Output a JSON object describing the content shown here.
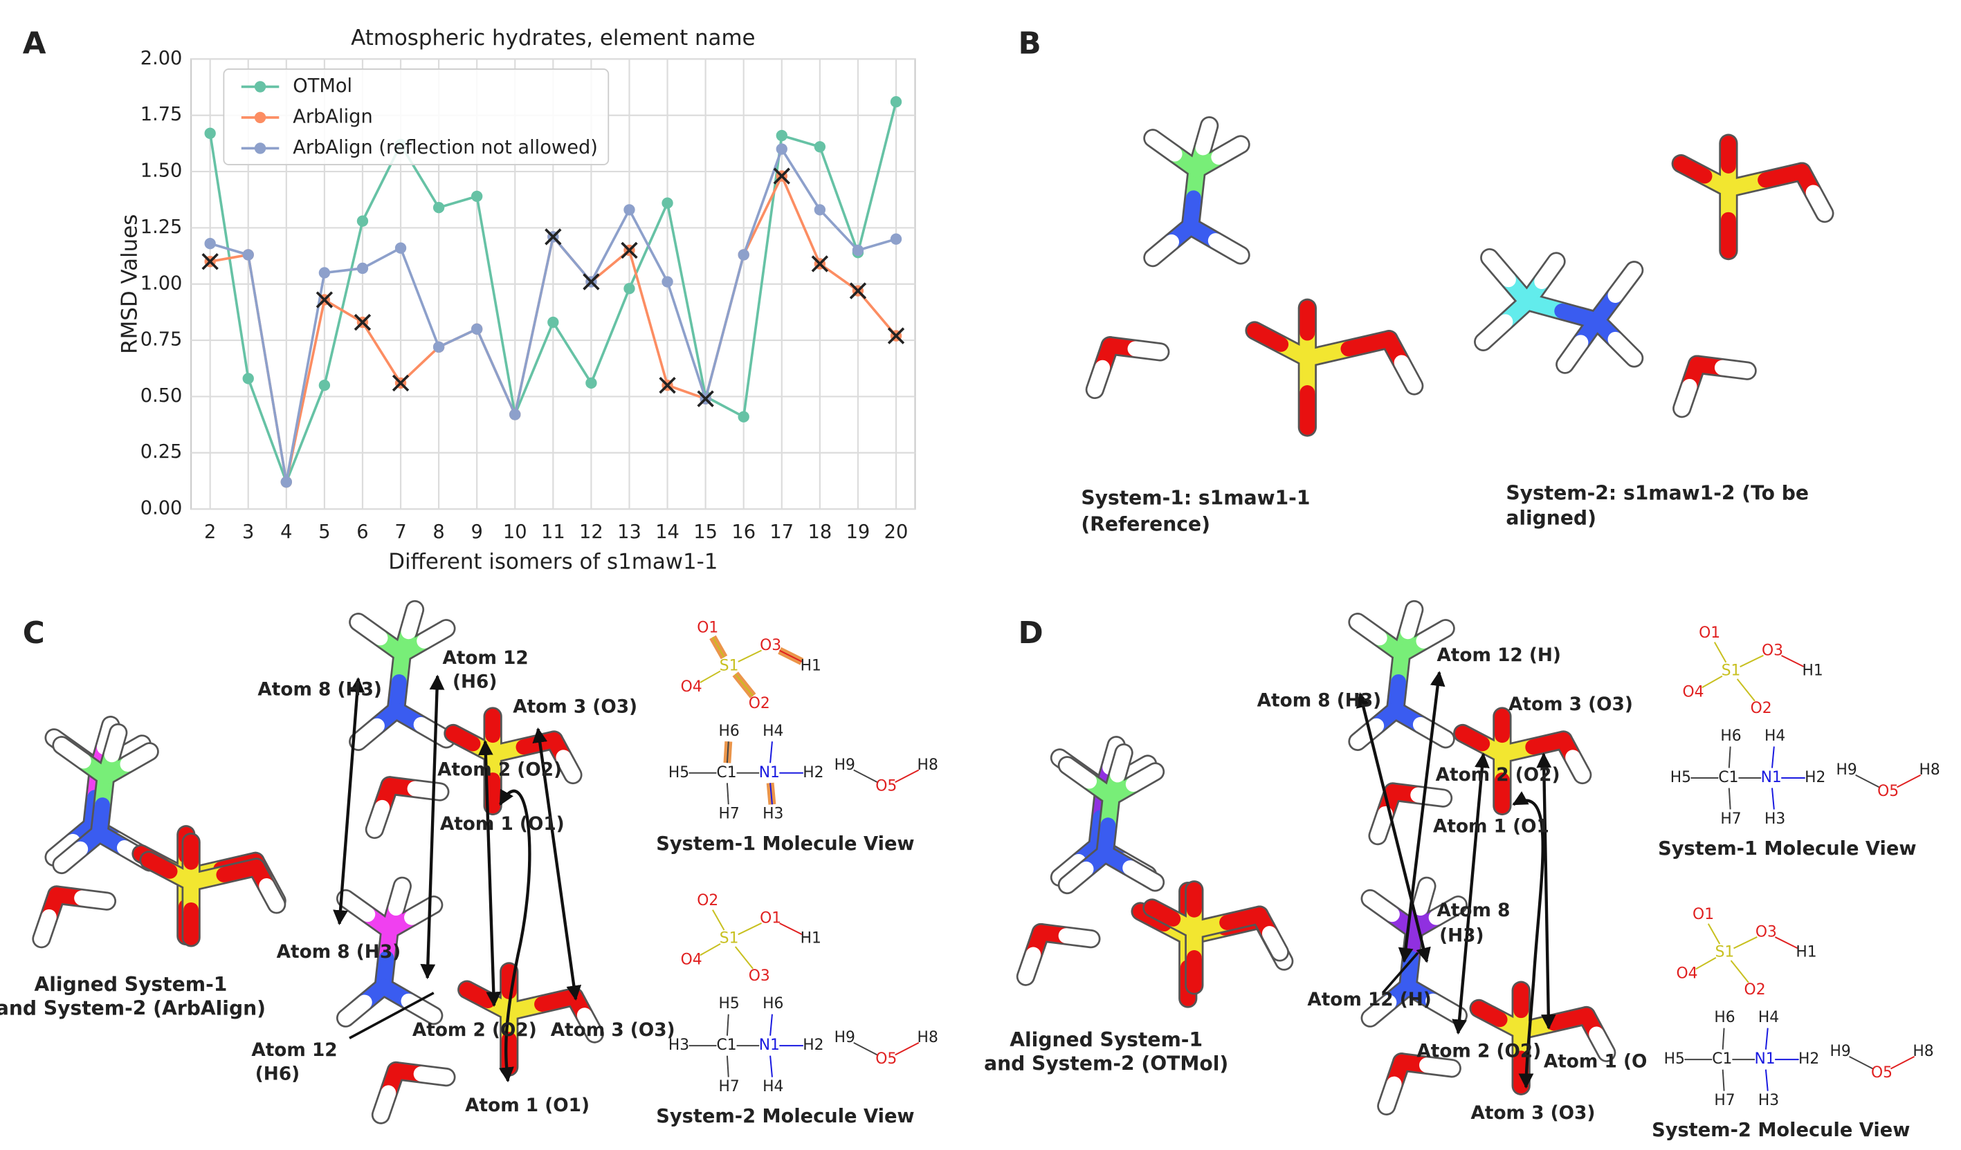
{
  "chart_data": {
    "type": "line",
    "title": "Atmospheric hydrates, element name",
    "x_label": "Different isomers of s1maw1-1",
    "y_label": "RMSD Values",
    "x": [
      2,
      3,
      4,
      5,
      6,
      7,
      8,
      9,
      10,
      11,
      12,
      13,
      14,
      15,
      16,
      17,
      18,
      19,
      20
    ],
    "series": [
      {
        "name": "OTMol",
        "color": "#66c2a5",
        "values": [
          1.67,
          0.58,
          0.12,
          0.55,
          1.28,
          1.62,
          1.34,
          1.39,
          0.42,
          0.83,
          0.56,
          0.98,
          1.36,
          0.5,
          0.41,
          1.66,
          1.61,
          1.14,
          1.81
        ]
      },
      {
        "name": "ArbAlign",
        "color": "#fc8d62",
        "values": [
          1.1,
          1.13,
          0.12,
          0.93,
          0.83,
          0.56,
          0.72,
          0.8,
          0.42,
          1.21,
          1.01,
          1.15,
          0.55,
          0.49,
          1.13,
          1.48,
          1.09,
          0.97,
          0.77
        ]
      },
      {
        "name": "ArbAlign (reflection not allowed)",
        "color": "#8da0cb",
        "values": [
          1.18,
          1.13,
          0.12,
          1.05,
          1.07,
          1.16,
          0.72,
          0.8,
          0.42,
          1.21,
          1.01,
          1.33,
          1.01,
          0.49,
          1.13,
          1.6,
          1.33,
          1.15,
          1.2
        ]
      }
    ],
    "cross_markers": {
      "color": "#222222",
      "x": [
        2,
        5,
        6,
        7,
        11,
        12,
        13,
        14,
        15,
        17,
        18,
        19,
        20
      ],
      "values": [
        1.1,
        0.93,
        0.83,
        0.56,
        1.21,
        1.01,
        1.15,
        0.55,
        0.49,
        1.48,
        1.09,
        0.97,
        0.77
      ]
    },
    "xlim": [
      1.5,
      20.5
    ],
    "xticks": [
      2,
      3,
      4,
      5,
      6,
      7,
      8,
      9,
      10,
      11,
      12,
      13,
      14,
      15,
      16,
      17,
      18,
      19,
      20
    ],
    "ylim": [
      0,
      2
    ],
    "yticks": [
      {
        "value": 0,
        "label": "0.00"
      },
      {
        "value": 0.25,
        "label": "0.25"
      },
      {
        "value": 0.5,
        "label": "0.50"
      },
      {
        "value": 0.75,
        "label": "0.75"
      },
      {
        "value": 1,
        "label": "1.00"
      },
      {
        "value": 1.25,
        "label": "1.25"
      },
      {
        "value": 1.5,
        "label": "1.50"
      },
      {
        "value": 1.75,
        "label": "1.75"
      },
      {
        "value": 2,
        "label": "2.00"
      }
    ],
    "grid": true,
    "legend": "upper left"
  },
  "panel_labels": [
    "A",
    "B",
    "C",
    "D"
  ],
  "panel_b": {
    "system1": [
      "System-1: s1maw1-1",
      "(Reference)"
    ],
    "system2": [
      "System-2: s1maw1-2 (To be",
      "aligned)"
    ]
  },
  "panel_c": {
    "caption": [
      "Aligned System-1",
      "and System-2 (ArbAlign)"
    ],
    "atom_labels": [
      "Atom 8 (H3)",
      "Atom 12",
      "(H6)",
      "Atom 3 (O3)",
      "Atom 2 (O2)",
      "Atom 1 (O1)",
      "Atom 8 (H3)",
      "Atom 12",
      "(H6)",
      "Atom 2 (O2)",
      "Atom 3 (O3)",
      "Atom 1 (O1)"
    ],
    "views": [
      {
        "title": "System-1 Molecule View",
        "atoms": [
          "O1",
          "O3",
          "H1",
          "O4",
          "O2",
          "S1",
          "H6",
          "H4",
          "H5",
          "C1",
          "N1",
          "H2",
          "H7",
          "H3",
          "H9",
          "O5",
          "H8"
        ]
      },
      {
        "title": "System-2 Molecule View",
        "atoms": [
          "O2",
          "O1",
          "H1",
          "O4",
          "O3",
          "S1",
          "H5",
          "H6",
          "H3",
          "C1",
          "N1",
          "H2",
          "H7",
          "H4",
          "H9",
          "O5",
          "H8"
        ]
      }
    ]
  },
  "panel_d": {
    "caption": [
      "Aligned System-1",
      "and System-2 (OTMol)"
    ],
    "atom_labels": [
      "Atom 12 (H)",
      "Atom 8 (H3)",
      "Atom 3 (O3)",
      "Atom 2 (O2)",
      "Atom 1 (O1",
      "Atom 8",
      "(H3)",
      "Atom 12 (H)",
      "Atom 2 (O2)",
      "Atom 1 (O",
      "Atom 3 (O3)"
    ],
    "views": [
      {
        "title": "System-1 Molecule View",
        "atoms": [
          "O1",
          "O3",
          "H1",
          "O4",
          "O2",
          "S1",
          "H6",
          "H4",
          "H5",
          "C1",
          "N1",
          "H2",
          "H7",
          "H3",
          "H9",
          "O5",
          "H8"
        ]
      },
      {
        "title": "System-2 Molecule View",
        "atoms": [
          "O1",
          "O3",
          "H1",
          "O4",
          "O2",
          "S1",
          "H6",
          "H4",
          "H5",
          "C1",
          "N1",
          "H2",
          "H7",
          "H3",
          "H9",
          "O5",
          "H8"
        ]
      }
    ]
  }
}
